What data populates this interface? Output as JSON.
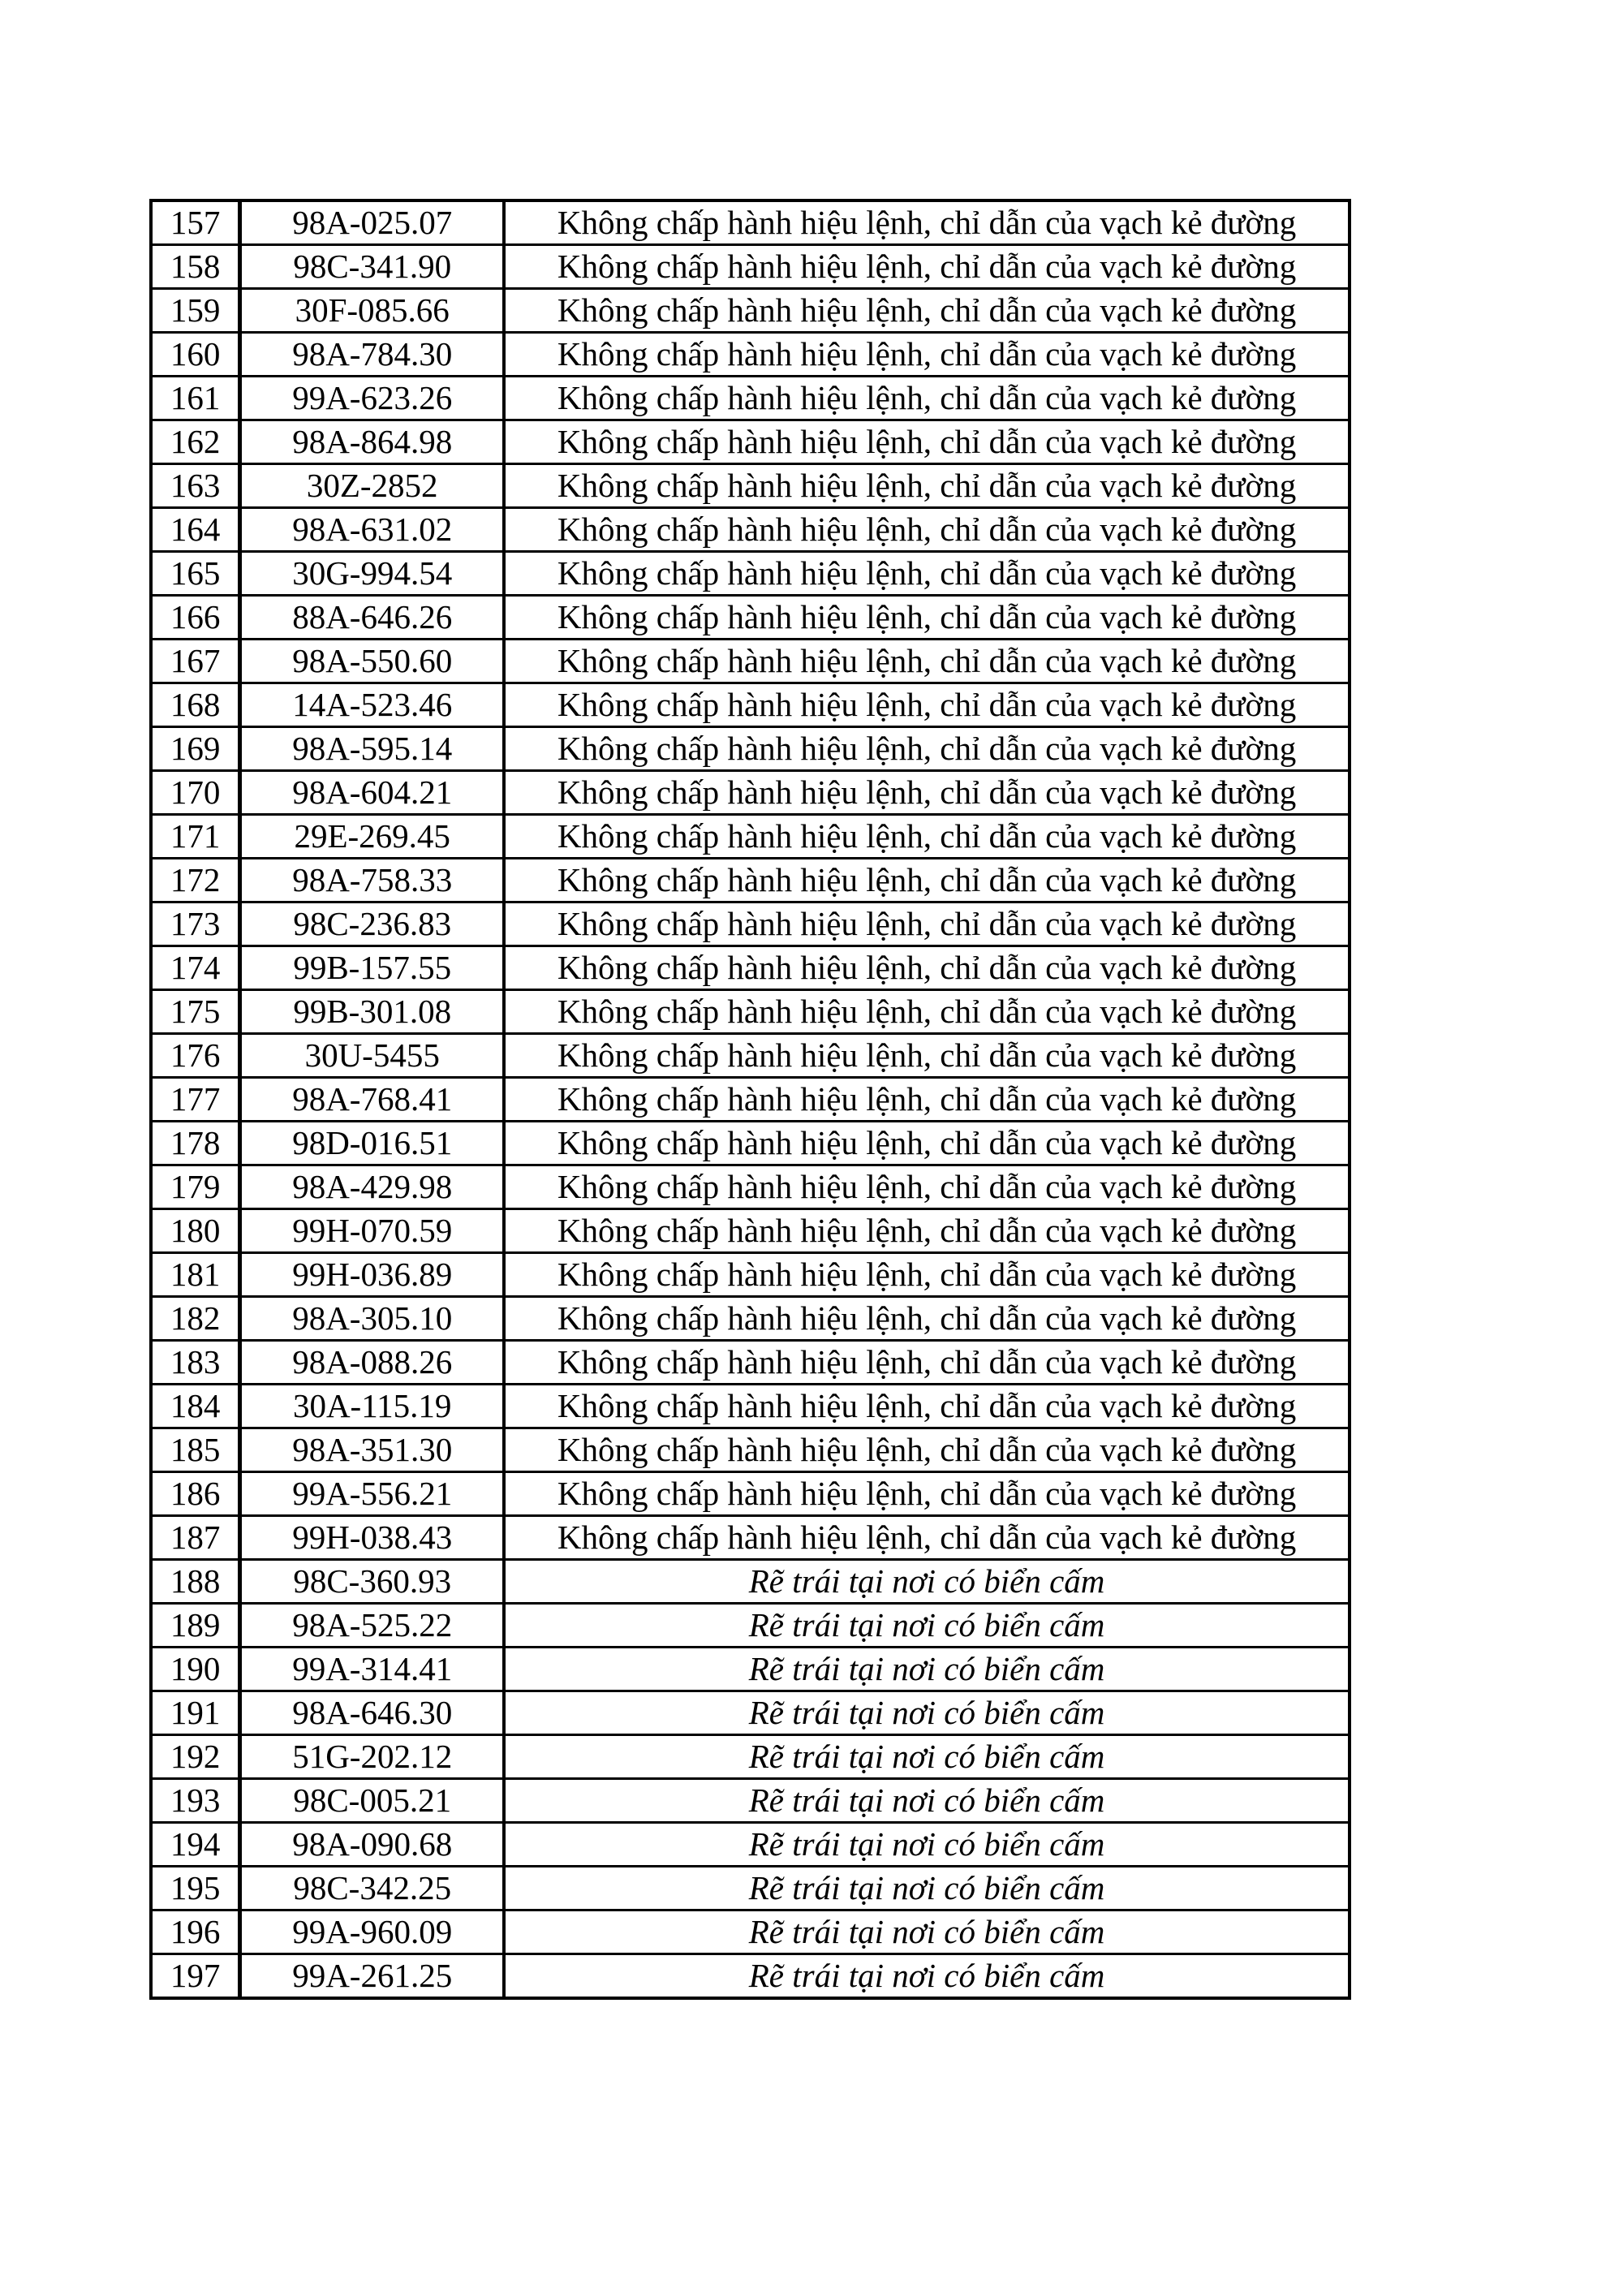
{
  "rows": [
    {
      "no": "157",
      "plate": "98A-025.07",
      "violation": "Không chấp hành hiệu lệnh, chỉ dẫn của vạch kẻ đường",
      "italic": false
    },
    {
      "no": "158",
      "plate": "98C-341.90",
      "violation": "Không chấp hành hiệu lệnh, chỉ dẫn của vạch kẻ đường",
      "italic": false
    },
    {
      "no": "159",
      "plate": "30F-085.66",
      "violation": "Không chấp hành hiệu lệnh, chỉ dẫn của vạch kẻ đường",
      "italic": false
    },
    {
      "no": "160",
      "plate": "98A-784.30",
      "violation": "Không chấp hành hiệu lệnh, chỉ dẫn của vạch kẻ đường",
      "italic": false
    },
    {
      "no": "161",
      "plate": "99A-623.26",
      "violation": "Không chấp hành hiệu lệnh, chỉ dẫn của vạch kẻ đường",
      "italic": false
    },
    {
      "no": "162",
      "plate": "98A-864.98",
      "violation": "Không chấp hành hiệu lệnh, chỉ dẫn của vạch kẻ đường",
      "italic": false
    },
    {
      "no": "163",
      "plate": "30Z-2852",
      "violation": "Không chấp hành hiệu lệnh, chỉ dẫn của vạch kẻ đường",
      "italic": false
    },
    {
      "no": "164",
      "plate": "98A-631.02",
      "violation": "Không chấp hành hiệu lệnh, chỉ dẫn của vạch kẻ đường",
      "italic": false
    },
    {
      "no": "165",
      "plate": "30G-994.54",
      "violation": "Không chấp hành hiệu lệnh, chỉ dẫn của vạch kẻ đường",
      "italic": false
    },
    {
      "no": "166",
      "plate": "88A-646.26",
      "violation": "Không chấp hành hiệu lệnh, chỉ dẫn của vạch kẻ đường",
      "italic": false
    },
    {
      "no": "167",
      "plate": "98A-550.60",
      "violation": "Không chấp hành hiệu lệnh, chỉ dẫn của vạch kẻ đường",
      "italic": false
    },
    {
      "no": "168",
      "plate": "14A-523.46",
      "violation": "Không chấp hành hiệu lệnh, chỉ dẫn của vạch kẻ đường",
      "italic": false
    },
    {
      "no": "169",
      "plate": "98A-595.14",
      "violation": "Không chấp hành hiệu lệnh, chỉ dẫn của vạch kẻ đường",
      "italic": false
    },
    {
      "no": "170",
      "plate": "98A-604.21",
      "violation": "Không chấp hành hiệu lệnh, chỉ dẫn của vạch kẻ đường",
      "italic": false
    },
    {
      "no": "171",
      "plate": "29E-269.45",
      "violation": "Không chấp hành hiệu lệnh, chỉ dẫn của vạch kẻ đường",
      "italic": false
    },
    {
      "no": "172",
      "plate": "98A-758.33",
      "violation": "Không chấp hành hiệu lệnh, chỉ dẫn của vạch kẻ đường",
      "italic": false
    },
    {
      "no": "173",
      "plate": "98C-236.83",
      "violation": "Không chấp hành hiệu lệnh, chỉ dẫn của vạch kẻ đường",
      "italic": false
    },
    {
      "no": "174",
      "plate": "99B-157.55",
      "violation": "Không chấp hành hiệu lệnh, chỉ dẫn của vạch kẻ đường",
      "italic": false
    },
    {
      "no": "175",
      "plate": "99B-301.08",
      "violation": "Không chấp hành hiệu lệnh, chỉ dẫn của vạch kẻ đường",
      "italic": false
    },
    {
      "no": "176",
      "plate": "30U-5455",
      "violation": "Không chấp hành hiệu lệnh, chỉ dẫn của vạch kẻ đường",
      "italic": false
    },
    {
      "no": "177",
      "plate": "98A-768.41",
      "violation": "Không chấp hành hiệu lệnh, chỉ dẫn của vạch kẻ đường",
      "italic": false
    },
    {
      "no": "178",
      "plate": "98D-016.51",
      "violation": "Không chấp hành hiệu lệnh, chỉ dẫn của vạch kẻ đường",
      "italic": false
    },
    {
      "no": "179",
      "plate": "98A-429.98",
      "violation": "Không chấp hành hiệu lệnh, chỉ dẫn của vạch kẻ đường",
      "italic": false
    },
    {
      "no": "180",
      "plate": "99H-070.59",
      "violation": "Không chấp hành hiệu lệnh, chỉ dẫn của vạch kẻ đường",
      "italic": false
    },
    {
      "no": "181",
      "plate": "99H-036.89",
      "violation": "Không chấp hành hiệu lệnh, chỉ dẫn của vạch kẻ đường",
      "italic": false
    },
    {
      "no": "182",
      "plate": "98A-305.10",
      "violation": "Không chấp hành hiệu lệnh, chỉ dẫn của vạch kẻ đường",
      "italic": false
    },
    {
      "no": "183",
      "plate": "98A-088.26",
      "violation": "Không chấp hành hiệu lệnh, chỉ dẫn của vạch kẻ đường",
      "italic": false
    },
    {
      "no": "184",
      "plate": "30A-115.19",
      "violation": "Không chấp hành hiệu lệnh, chỉ dẫn của vạch kẻ đường",
      "italic": false
    },
    {
      "no": "185",
      "plate": "98A-351.30",
      "violation": "Không chấp hành hiệu lệnh, chỉ dẫn của vạch kẻ đường",
      "italic": false
    },
    {
      "no": "186",
      "plate": "99A-556.21",
      "violation": "Không chấp hành hiệu lệnh, chỉ dẫn của vạch kẻ đường",
      "italic": false
    },
    {
      "no": "187",
      "plate": "99H-038.43",
      "violation": "Không chấp hành hiệu lệnh, chỉ dẫn của vạch kẻ đường",
      "italic": false
    },
    {
      "no": "188",
      "plate": "98C-360.93",
      "violation": "Rẽ trái tại nơi có biển cấm",
      "italic": true
    },
    {
      "no": "189",
      "plate": "98A-525.22",
      "violation": "Rẽ trái tại nơi có biển cấm",
      "italic": true
    },
    {
      "no": "190",
      "plate": "99A-314.41",
      "violation": "Rẽ trái tại nơi có biển cấm",
      "italic": true
    },
    {
      "no": "191",
      "plate": "98A-646.30",
      "violation": "Rẽ trái tại nơi có biển cấm",
      "italic": true
    },
    {
      "no": "192",
      "plate": "51G-202.12",
      "violation": "Rẽ trái tại nơi có biển cấm",
      "italic": true
    },
    {
      "no": "193",
      "plate": "98C-005.21",
      "violation": "Rẽ trái tại nơi có biển cấm",
      "italic": true
    },
    {
      "no": "194",
      "plate": "98A-090.68",
      "violation": "Rẽ trái tại nơi có biển cấm",
      "italic": true
    },
    {
      "no": "195",
      "plate": "98C-342.25",
      "violation": "Rẽ trái tại nơi có biển cấm",
      "italic": true
    },
    {
      "no": "196",
      "plate": "99A-960.09",
      "violation": "Rẽ trái tại nơi có biển cấm",
      "italic": true
    },
    {
      "no": "197",
      "plate": "99A-261.25",
      "violation": "Rẽ trái tại nơi có biển cấm",
      "italic": true
    }
  ]
}
